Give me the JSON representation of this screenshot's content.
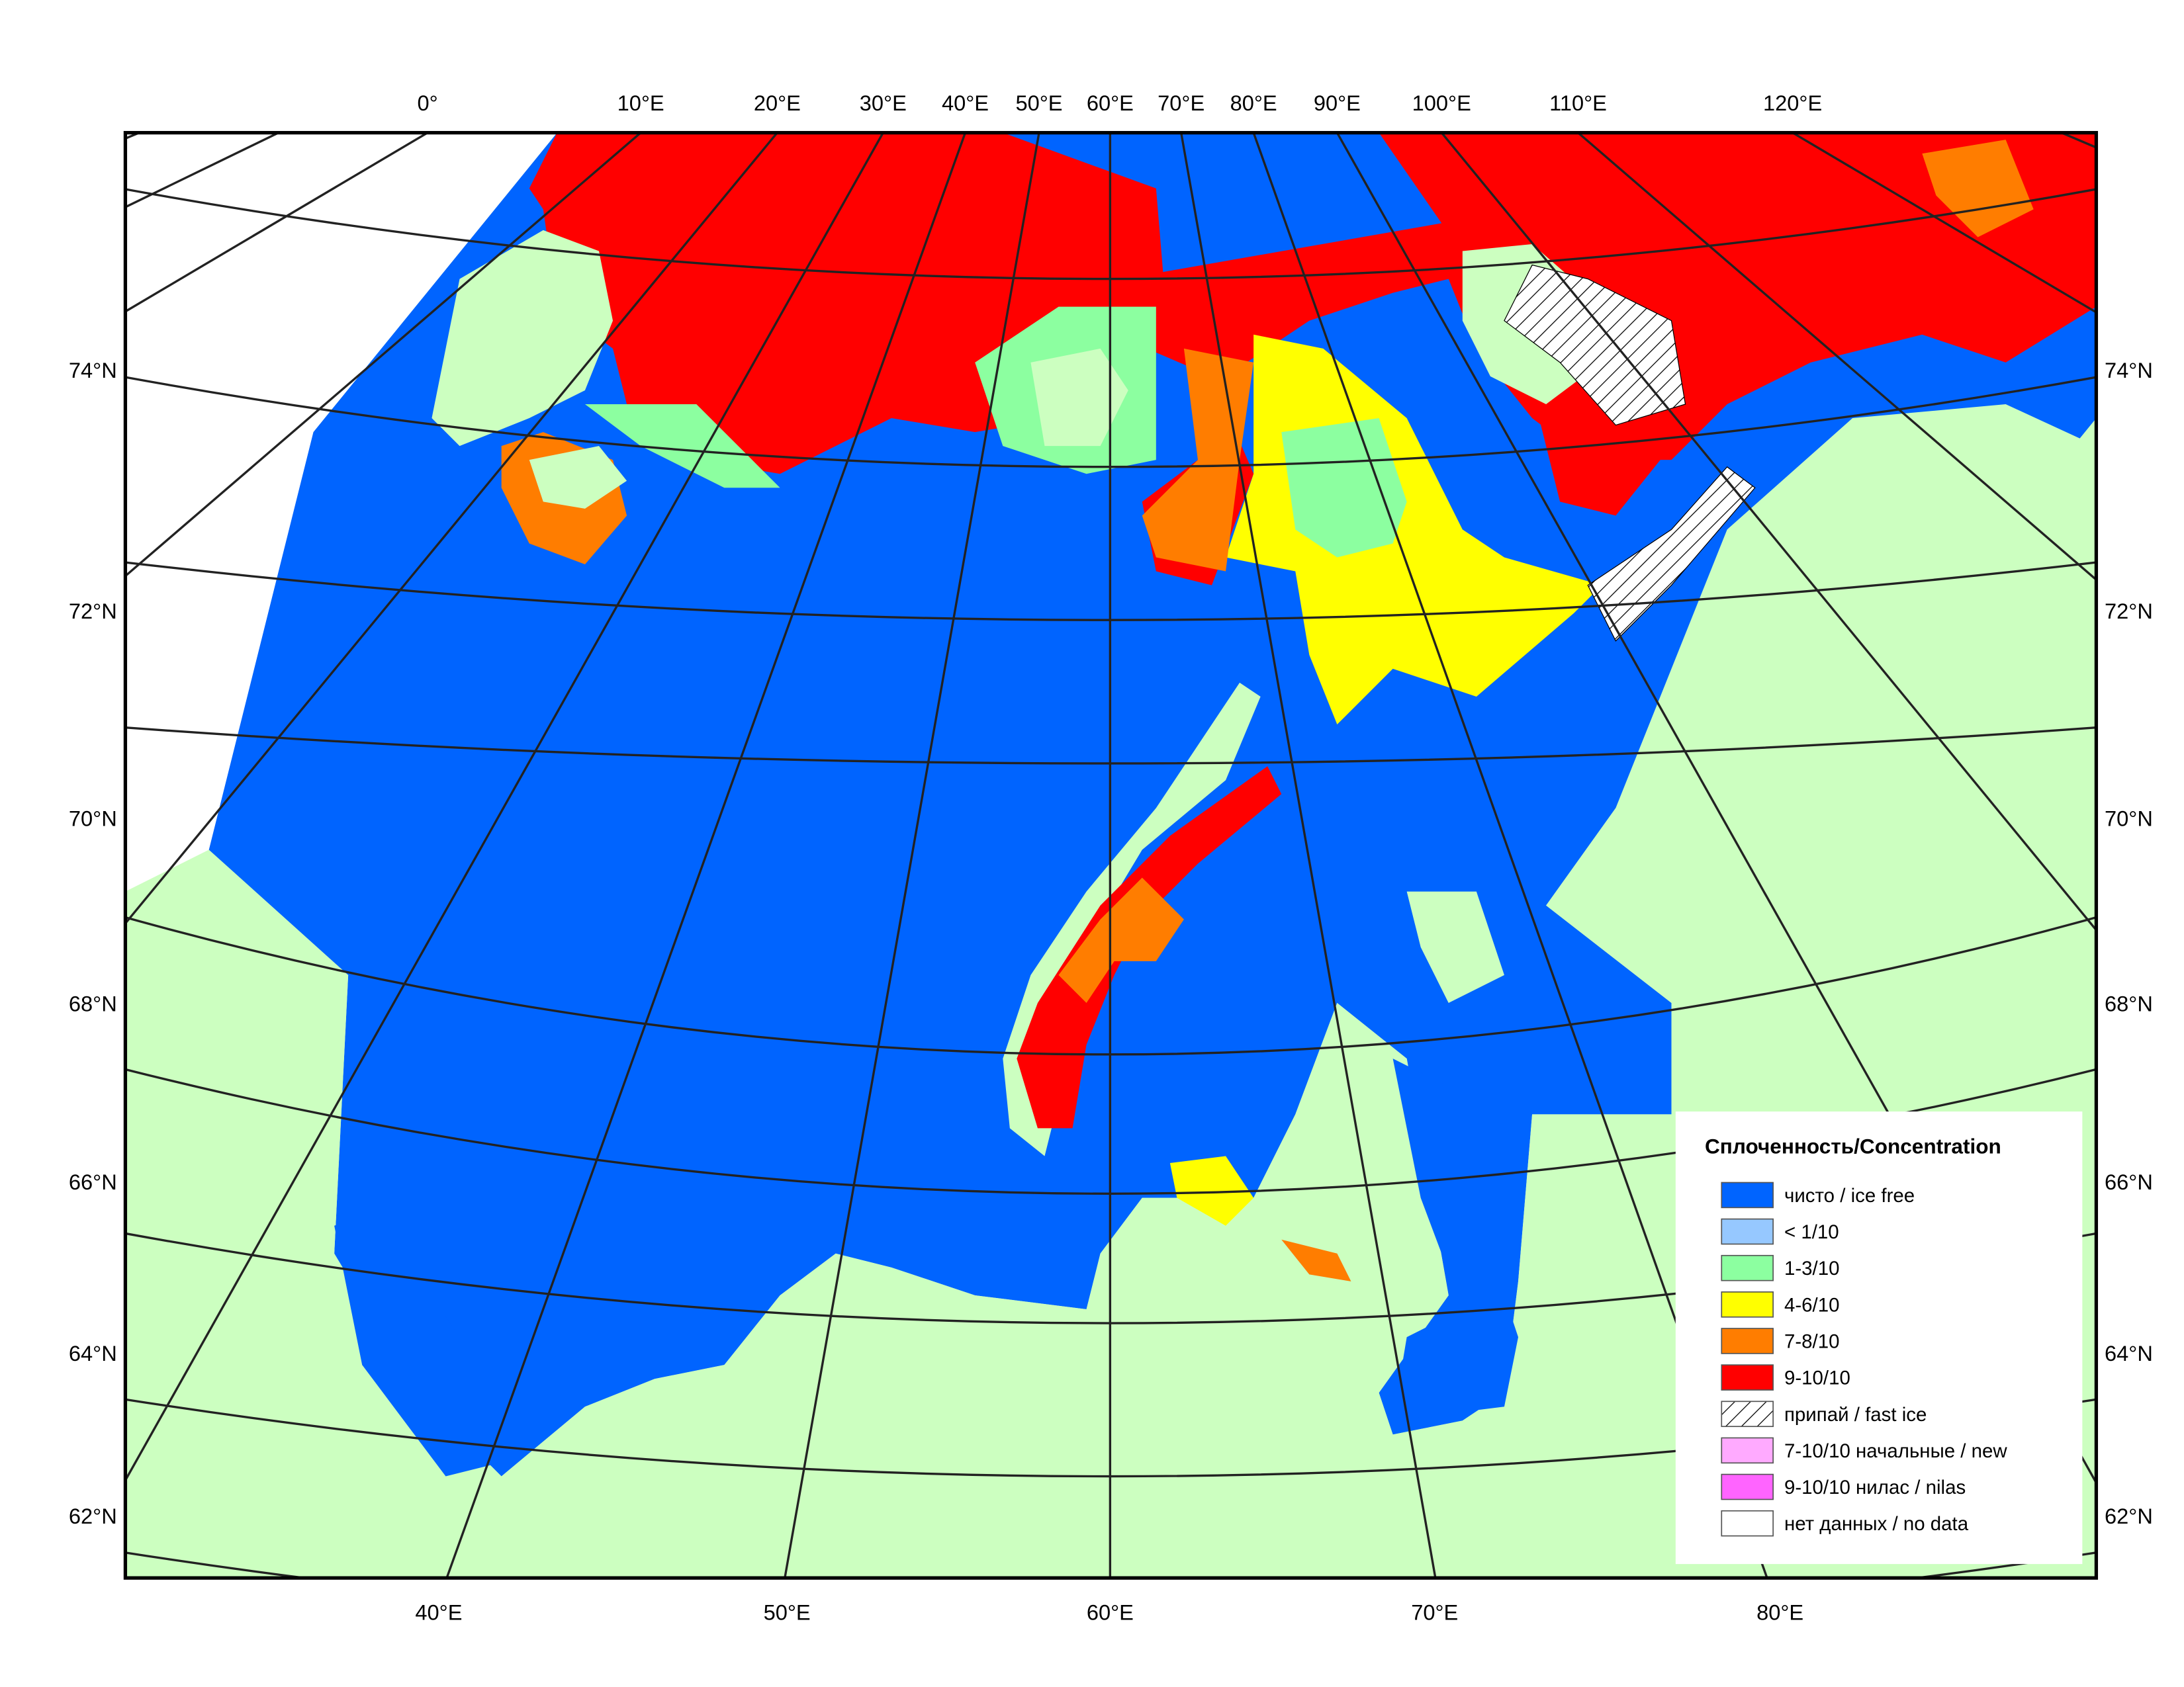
{
  "map": {
    "top_lon_labels": [
      "0°",
      "10°E",
      "20°E",
      "30°E",
      "40°E",
      "50°E",
      "60°E",
      "70°E",
      "80°E",
      "90°E",
      "100°E",
      "110°E",
      "120°E"
    ],
    "bottom_lon_labels": [
      "40°E",
      "50°E",
      "60°E",
      "70°E",
      "80°E"
    ],
    "lat_labels": [
      "74°N",
      "72°N",
      "70°N",
      "68°N",
      "66°N",
      "64°N",
      "62°N"
    ],
    "legend": {
      "title": "Сплоченность/Concentration",
      "items": [
        {
          "label": "чисто / ice free",
          "color": "#0064ff"
        },
        {
          "label": "< 1/10",
          "color": "#96c8ff"
        },
        {
          "label": "1-3/10",
          "color": "#8cffa0"
        },
        {
          "label": "4-6/10",
          "color": "#ffff00"
        },
        {
          "label": "7-8/10",
          "color": "#ff7d00"
        },
        {
          "label": "9-10/10",
          "color": "#ff0000"
        },
        {
          "label": "припай / fast ice",
          "color": "#ffffff",
          "hatch": true
        },
        {
          "label": "7-10/10 начальные / new",
          "color": "#ffaaff"
        },
        {
          "label": "9-10/10 нилас / nilas",
          "color": "#ff64ff"
        },
        {
          "label": "нет данных / no data",
          "color": "#ffffff"
        }
      ]
    }
  }
}
